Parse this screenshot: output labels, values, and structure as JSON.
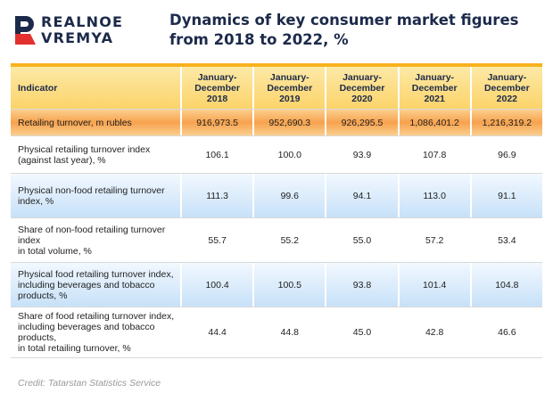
{
  "logo": {
    "line1": "REALNOE",
    "line2": "VREMYA",
    "icon": "realnoe-vremya-logo-mark"
  },
  "title": {
    "line1": "Dynamics of key consumer market figures",
    "line2": "from 2018 to 2022, %"
  },
  "colors": {
    "accent": "#f7b21b",
    "header_bg": "#fbd36a",
    "highlight_row": "#f7a24e",
    "blue_row": "#c7e1f8",
    "title_text": "#1c2a4a"
  },
  "chart_data": {
    "type": "table",
    "columns": [
      {
        "label": "Indicator"
      },
      {
        "line1": "January-December",
        "line2": "2018"
      },
      {
        "line1": "January-December",
        "line2": "2019"
      },
      {
        "line1": "January-December",
        "line2": "2020"
      },
      {
        "line1": "January-December",
        "line2": "2021"
      },
      {
        "line1": "January-December",
        "line2": "2022"
      }
    ],
    "rows": [
      {
        "indicator": "Retailing turnover, m rubles",
        "values": [
          "916,973.5",
          "952,690.3",
          "926,295.5",
          "1,086,401.2",
          "1,216,319.2"
        ]
      },
      {
        "indicator": "Physical retailing turnover index\n(against last year), %",
        "values": [
          "106.1",
          "100.0",
          "93.9",
          "107.8",
          "96.9"
        ]
      },
      {
        "indicator": "Physical non-food retailing turnover index, %",
        "values": [
          "111.3",
          "99.6",
          "94.1",
          "113.0",
          "91.1"
        ]
      },
      {
        "indicator": "Share of non-food retailing turnover index\nin total volume, %",
        "values": [
          "55.7",
          "55.2",
          "55.0",
          "57.2",
          "53.4"
        ]
      },
      {
        "indicator": "Physical food retailing turnover index,\nincluding beverages and tobacco products, %",
        "values": [
          "100.4",
          "100.5",
          "93.8",
          "101.4",
          "104.8"
        ]
      },
      {
        "indicator": "Share of food retailing turnover index,\nincluding beverages and tobacco products,\nin total retailing turnover, %",
        "values": [
          "44.4",
          "44.8",
          "45.0",
          "42.8",
          "46.6"
        ]
      }
    ]
  },
  "credit": "Credit: Tatarstan Statistics Service"
}
